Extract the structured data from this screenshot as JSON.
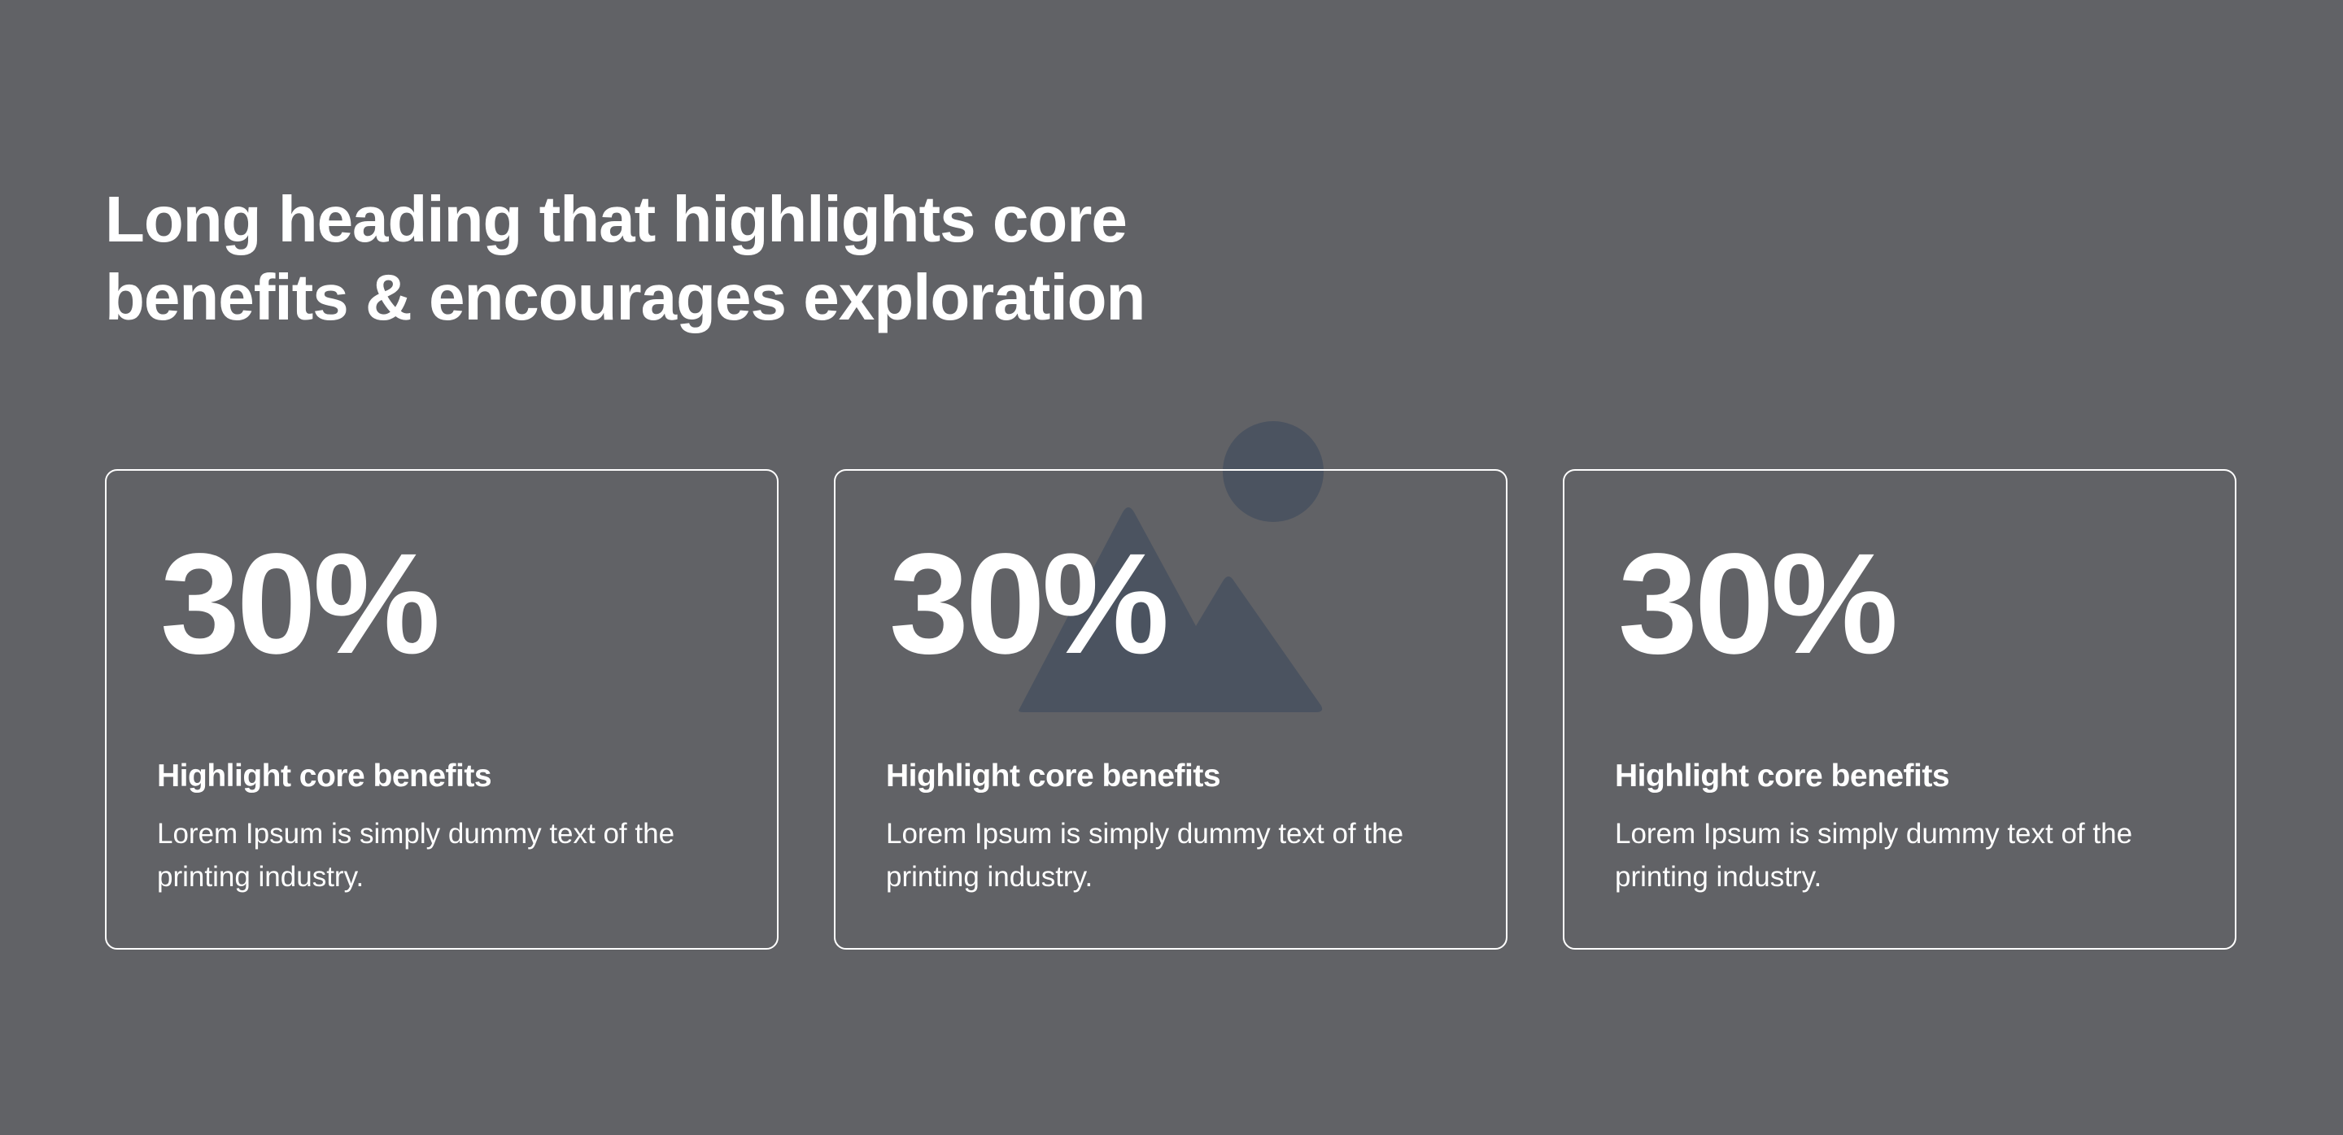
{
  "header": {
    "title": "Long heading that highlights core benefits & encourages exploration"
  },
  "cards": [
    {
      "value": "30%",
      "title": "Highlight core benefits",
      "body": "Lorem Ipsum is simply dummy text of the printing industry."
    },
    {
      "value": "30%",
      "title": "Highlight core benefits",
      "body": "Lorem Ipsum is simply dummy text of the printing industry."
    },
    {
      "value": "30%",
      "title": "Highlight core benefits",
      "body": "Lorem Ipsum is simply dummy text of the printing industry."
    }
  ]
}
